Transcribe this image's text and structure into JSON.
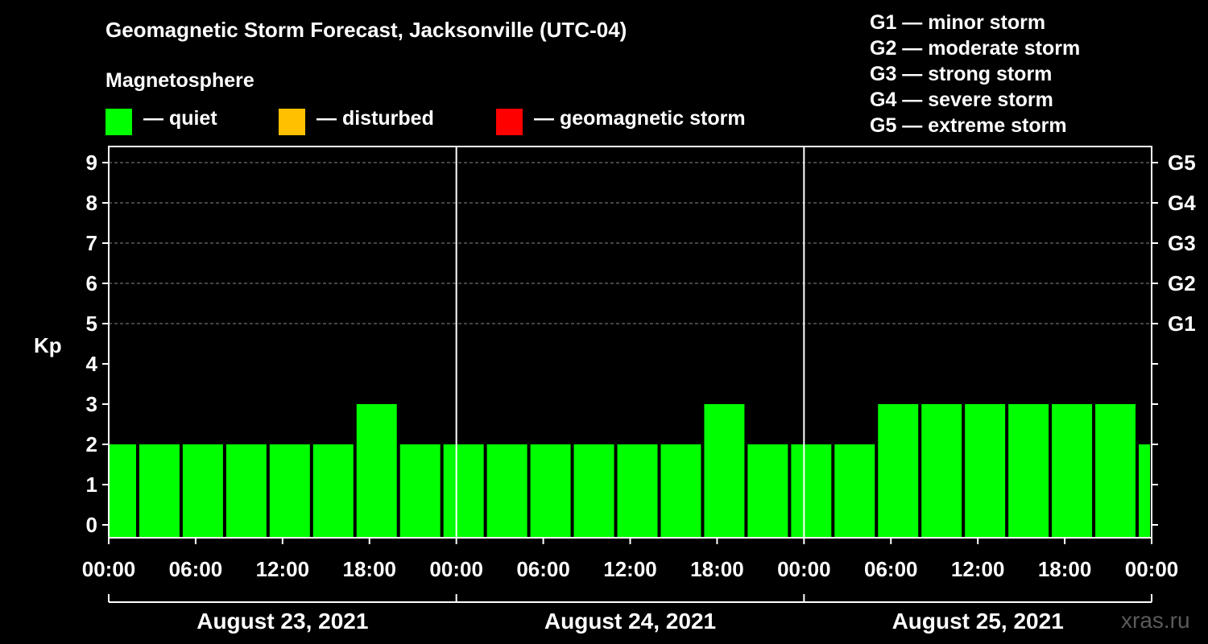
{
  "header": {
    "title": "Geomagnetic Storm Forecast, Jacksonville (UTC-04)",
    "section": "Magnetosphere",
    "watermark": "xras.ru"
  },
  "legend": {
    "items": [
      {
        "label": "— quiet",
        "color": "#00ff00"
      },
      {
        "label": "— disturbed",
        "color": "#ffc000"
      },
      {
        "label": "— geomagnetic storm",
        "color": "#ff0000"
      }
    ],
    "storm_levels": [
      "G1 — minor storm",
      "G2 — moderate storm",
      "G3 — strong storm",
      "G4 — severe storm",
      "G5 — extreme storm"
    ]
  },
  "chart_data": {
    "type": "bar",
    "ylabel": "Kp",
    "ylim": [
      0,
      9
    ],
    "yticks": [
      0,
      1,
      2,
      3,
      4,
      5,
      6,
      7,
      8,
      9
    ],
    "right_axis_labels": [
      {
        "kp": 5,
        "label": "G1"
      },
      {
        "kp": 6,
        "label": "G2"
      },
      {
        "kp": 7,
        "label": "G3"
      },
      {
        "kp": 8,
        "label": "G4"
      },
      {
        "kp": 9,
        "label": "G5"
      }
    ],
    "x_tick_labels": [
      "00:00",
      "06:00",
      "12:00",
      "18:00",
      "00:00",
      "06:00",
      "12:00",
      "18:00",
      "00:00",
      "06:00",
      "12:00",
      "18:00",
      "00:00"
    ],
    "dates": [
      "August 23, 2021",
      "August 24, 2021",
      "August 25, 2021"
    ],
    "bar_color": "#00ff00",
    "grid": "dashed horizontal at Kp 5–9",
    "bars": [
      {
        "start_hour": 0,
        "end_hour": 2,
        "kp": 2
      },
      {
        "start_hour": 2,
        "end_hour": 5,
        "kp": 2
      },
      {
        "start_hour": 5,
        "end_hour": 8,
        "kp": 2
      },
      {
        "start_hour": 8,
        "end_hour": 11,
        "kp": 2
      },
      {
        "start_hour": 11,
        "end_hour": 14,
        "kp": 2
      },
      {
        "start_hour": 14,
        "end_hour": 17,
        "kp": 2
      },
      {
        "start_hour": 17,
        "end_hour": 20,
        "kp": 3
      },
      {
        "start_hour": 20,
        "end_hour": 23,
        "kp": 2
      },
      {
        "start_hour": 23,
        "end_hour": 26,
        "kp": 2
      },
      {
        "start_hour": 26,
        "end_hour": 29,
        "kp": 2
      },
      {
        "start_hour": 29,
        "end_hour": 32,
        "kp": 2
      },
      {
        "start_hour": 32,
        "end_hour": 35,
        "kp": 2
      },
      {
        "start_hour": 35,
        "end_hour": 38,
        "kp": 2
      },
      {
        "start_hour": 38,
        "end_hour": 41,
        "kp": 2
      },
      {
        "start_hour": 41,
        "end_hour": 44,
        "kp": 3
      },
      {
        "start_hour": 44,
        "end_hour": 47,
        "kp": 2
      },
      {
        "start_hour": 47,
        "end_hour": 50,
        "kp": 2
      },
      {
        "start_hour": 50,
        "end_hour": 53,
        "kp": 2
      },
      {
        "start_hour": 53,
        "end_hour": 56,
        "kp": 3
      },
      {
        "start_hour": 56,
        "end_hour": 59,
        "kp": 3
      },
      {
        "start_hour": 59,
        "end_hour": 62,
        "kp": 3
      },
      {
        "start_hour": 62,
        "end_hour": 65,
        "kp": 3
      },
      {
        "start_hour": 65,
        "end_hour": 68,
        "kp": 3
      },
      {
        "start_hour": 68,
        "end_hour": 71,
        "kp": 3
      },
      {
        "start_hour": 71,
        "end_hour": 72,
        "kp": 2
      }
    ]
  }
}
